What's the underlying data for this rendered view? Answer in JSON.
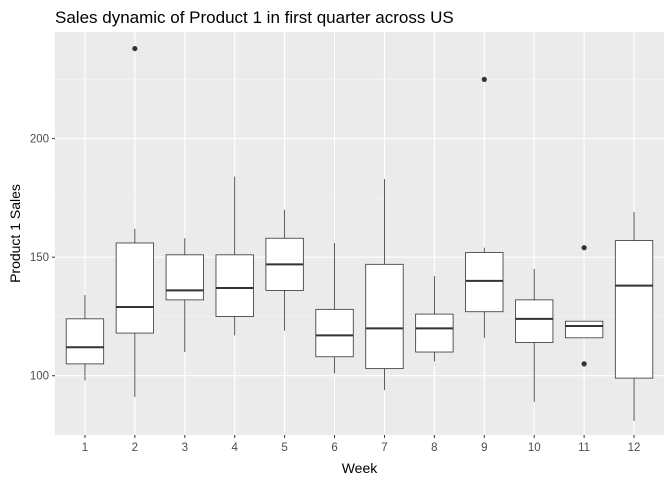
{
  "chart_data": {
    "type": "boxplot",
    "title": "Sales dynamic of Product 1 in first quarter across US",
    "xlabel": "Week",
    "ylabel": "Product 1 Sales",
    "categories": [
      "1",
      "2",
      "3",
      "4",
      "5",
      "6",
      "7",
      "8",
      "9",
      "10",
      "11",
      "12"
    ],
    "ylim": [
      75,
      245
    ],
    "yticks": [
      100,
      150,
      200
    ],
    "ytick_labels": [
      "100",
      "150",
      "200"
    ],
    "grid": true,
    "legend": "none",
    "boxes": [
      {
        "week": "1",
        "min": 98,
        "q1": 105,
        "median": 112,
        "q3": 124,
        "max": 134,
        "outliers": []
      },
      {
        "week": "2",
        "min": 91,
        "q1": 118,
        "median": 129,
        "q3": 156,
        "max": 162,
        "outliers": [
          238
        ]
      },
      {
        "week": "3",
        "min": 110,
        "q1": 132,
        "median": 136,
        "q3": 151,
        "max": 158,
        "outliers": []
      },
      {
        "week": "4",
        "min": 117,
        "q1": 125,
        "median": 137,
        "q3": 151,
        "max": 184,
        "outliers": []
      },
      {
        "week": "5",
        "min": 119,
        "q1": 136,
        "median": 147,
        "q3": 158,
        "max": 170,
        "outliers": []
      },
      {
        "week": "6",
        "min": 101,
        "q1": 108,
        "median": 117,
        "q3": 128,
        "max": 156,
        "outliers": []
      },
      {
        "week": "7",
        "min": 94,
        "q1": 103,
        "median": 120,
        "q3": 147,
        "max": 183,
        "outliers": []
      },
      {
        "week": "8",
        "min": 106,
        "q1": 110,
        "median": 120,
        "q3": 126,
        "max": 142,
        "outliers": []
      },
      {
        "week": "9",
        "min": 116,
        "q1": 127,
        "median": 140,
        "q3": 152,
        "max": 154,
        "outliers": [
          225
        ]
      },
      {
        "week": "10",
        "min": 89,
        "q1": 114,
        "median": 124,
        "q3": 132,
        "max": 145,
        "outliers": []
      },
      {
        "week": "11",
        "min": 116,
        "q1": 116,
        "median": 121,
        "q3": 123,
        "max": 123,
        "outliers": [
          154,
          105
        ]
      },
      {
        "week": "12",
        "min": 81,
        "q1": 99,
        "median": 138,
        "q3": 157,
        "max": 169,
        "outliers": []
      }
    ],
    "colors": {
      "panel": "#ebebeb",
      "grid_major": "#ffffff",
      "box_fill": "#ffffff",
      "box_line": "#333333",
      "tick_text": "#4d4d4d"
    }
  }
}
